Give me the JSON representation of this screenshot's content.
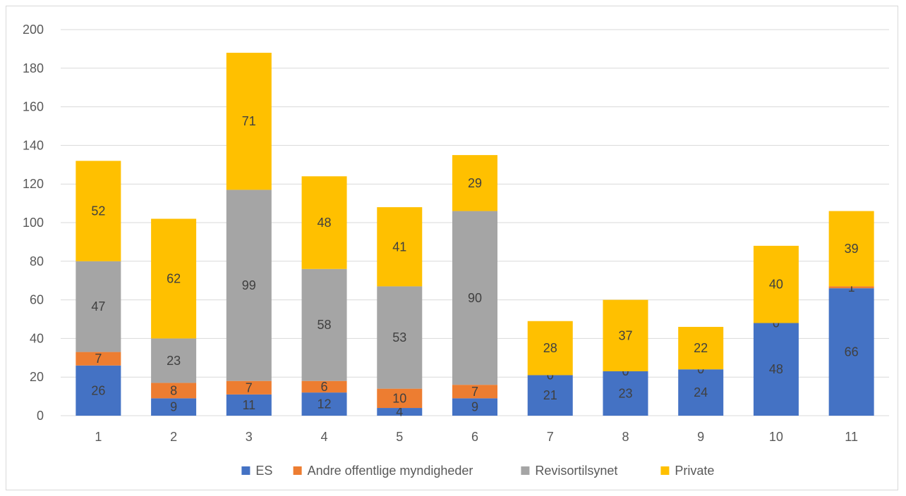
{
  "chart_data": {
    "type": "bar",
    "stacked": true,
    "categories": [
      "1",
      "2",
      "3",
      "4",
      "5",
      "6",
      "7",
      "8",
      "9",
      "10",
      "11"
    ],
    "series": [
      {
        "name": "ES",
        "color": "#4472C4",
        "values": [
          26,
          9,
          11,
          12,
          4,
          9,
          21,
          23,
          24,
          48,
          66
        ]
      },
      {
        "name": "Andre offentlige myndigheder",
        "color": "#ED7D31",
        "values": [
          7,
          8,
          7,
          6,
          10,
          7,
          0,
          0,
          0,
          0,
          1
        ]
      },
      {
        "name": "Revisortilsynet",
        "color": "#A5A5A5",
        "values": [
          47,
          23,
          99,
          58,
          53,
          90,
          0,
          0,
          0,
          0,
          0
        ]
      },
      {
        "name": "Private",
        "color": "#FFC000",
        "values": [
          52,
          62,
          71,
          48,
          41,
          29,
          28,
          37,
          22,
          40,
          39
        ]
      }
    ],
    "data_labels": [
      [
        "26",
        "9",
        "11",
        "12",
        "4",
        "9",
        "21",
        "23",
        "24",
        "48",
        "66"
      ],
      [
        "7",
        "8",
        "7",
        "6",
        "10",
        "7",
        "0",
        "0",
        "0",
        "0",
        "1"
      ],
      [
        "47",
        "23",
        "99",
        "58",
        "53",
        "90",
        "",
        "",
        "",
        "",
        ""
      ],
      [
        "52",
        "62",
        "71",
        "48",
        "41",
        "29",
        "28",
        "37",
        "22",
        "40",
        "39"
      ]
    ],
    "y_ticks": [
      "0",
      "20",
      "40",
      "60",
      "80",
      "100",
      "120",
      "140",
      "160",
      "180",
      "200"
    ],
    "ylim": [
      0,
      200
    ],
    "grid": true,
    "legend_position": "bottom",
    "title": "",
    "xlabel": "",
    "ylabel": ""
  }
}
